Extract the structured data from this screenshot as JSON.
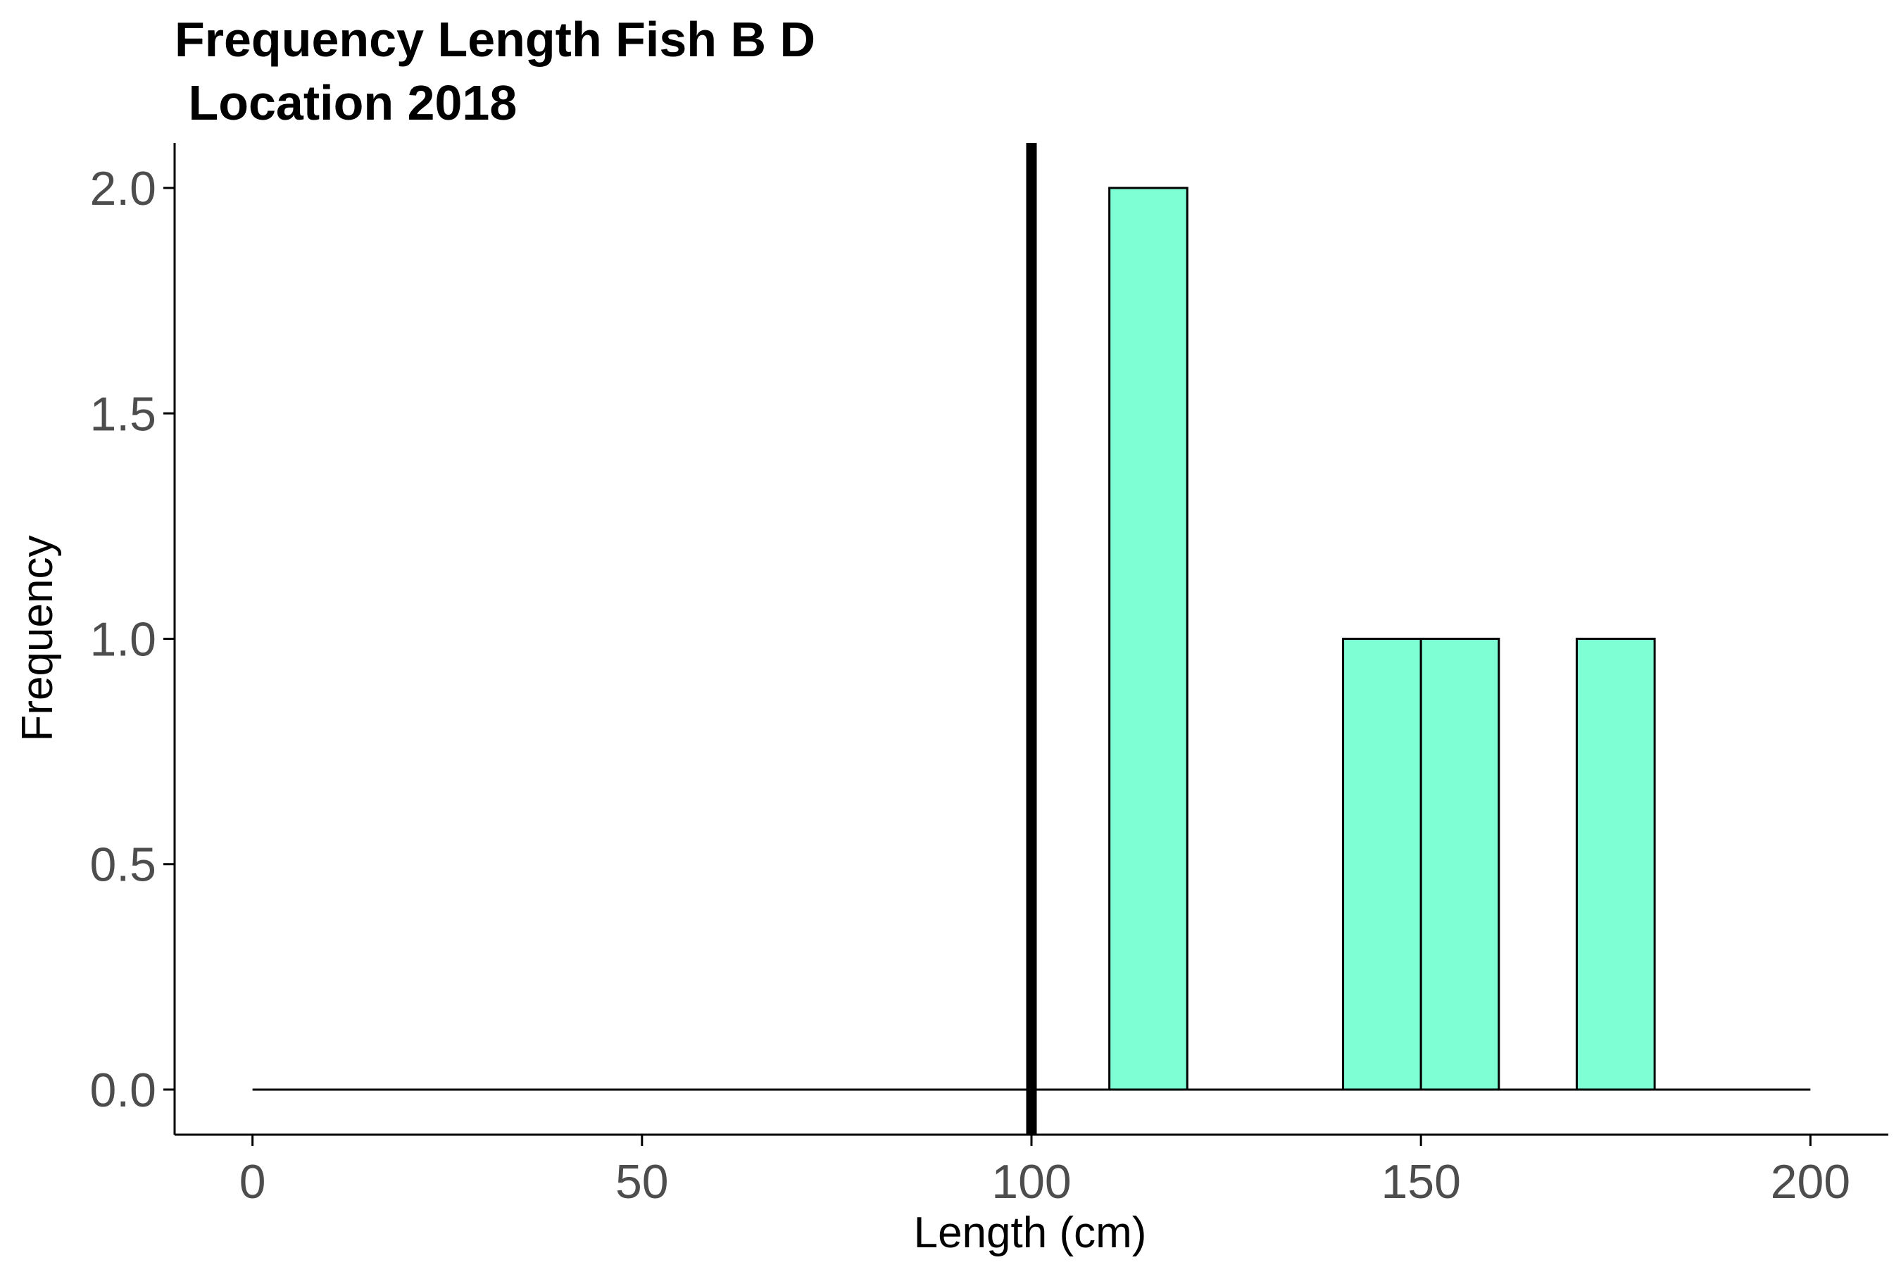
{
  "chart_data": {
    "type": "bar",
    "title_lines": [
      "Frequency Length Fish B D",
      " Location 2018"
    ],
    "xlabel": "Length (cm)",
    "ylabel": "Frequency",
    "xlim": [
      -10,
      210
    ],
    "ylim": [
      -0.1,
      2.1
    ],
    "x_ticks": [
      0,
      50,
      100,
      150,
      200
    ],
    "y_ticks": [
      "0.0",
      "0.5",
      "1.0",
      "1.5",
      "2.0"
    ],
    "baseline_range": [
      0,
      200
    ],
    "reference_line_x": 100,
    "bin_width": 10,
    "bins": [
      {
        "start": 110,
        "end": 120,
        "count": 2
      },
      {
        "start": 140,
        "end": 150,
        "count": 1
      },
      {
        "start": 150,
        "end": 160,
        "count": 1
      },
      {
        "start": 170,
        "end": 180,
        "count": 1
      }
    ],
    "bar_color": "#7fffd4",
    "grid": false
  }
}
